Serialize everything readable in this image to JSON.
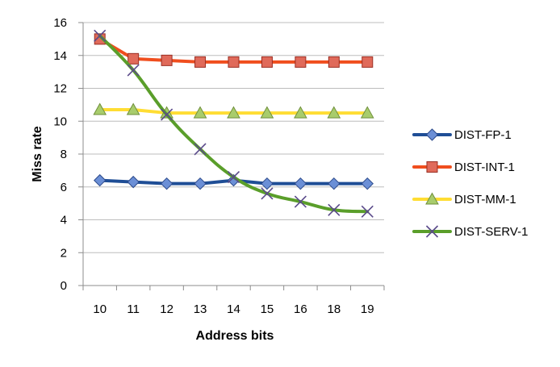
{
  "chart_data": {
    "type": "line",
    "xlabel": "Address bits",
    "ylabel": "Miss rate",
    "categories": [
      "10",
      "11",
      "12",
      "13",
      "14",
      "15",
      "16",
      "18",
      "19"
    ],
    "yticks": [
      "0",
      "2",
      "4",
      "6",
      "8",
      "10",
      "12",
      "14",
      "16"
    ],
    "ylim": [
      0,
      16
    ],
    "grid": "horizontal",
    "legend_position": "right",
    "series": [
      {
        "name": "DIST-FP-1",
        "color": "#1f4e96",
        "marker": "diamond",
        "values": [
          6.4,
          6.3,
          6.2,
          6.2,
          6.4,
          6.2,
          6.2,
          6.2,
          6.2
        ]
      },
      {
        "name": "DIST-INT-1",
        "color": "#f04e1e",
        "marker": "square",
        "values": [
          15.0,
          13.8,
          13.7,
          13.6,
          13.6,
          13.6,
          13.6,
          13.6,
          13.6
        ]
      },
      {
        "name": "DIST-MM-1",
        "color": "#ffdd33",
        "marker": "triangle",
        "values": [
          10.7,
          10.7,
          10.5,
          10.5,
          10.5,
          10.5,
          10.5,
          10.5,
          10.5
        ]
      },
      {
        "name": "DIST-SERV-1",
        "color": "#5a9e2a",
        "marker": "x",
        "values": [
          15.2,
          13.1,
          10.4,
          8.3,
          6.6,
          5.6,
          5.1,
          4.6,
          4.5
        ]
      }
    ]
  }
}
